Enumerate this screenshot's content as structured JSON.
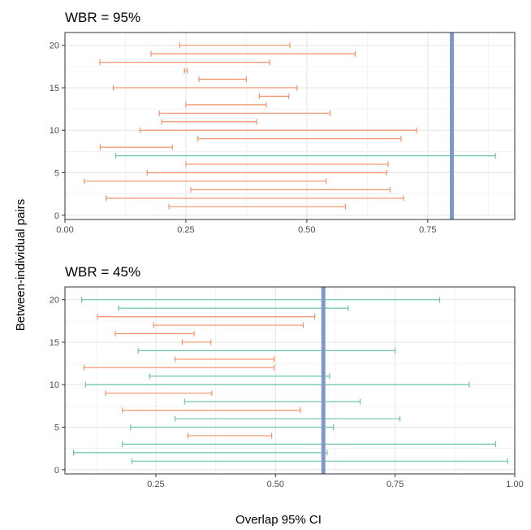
{
  "chart_data": {
    "type": "errorbar",
    "ylabel": "Between-individual pairs",
    "xlabel": "Overlap 95% CI",
    "grid": true,
    "colors": {
      "overlap": "#f4936a",
      "no_overlap": "#6cc5a8",
      "reference": "#8097c9"
    },
    "panels": [
      {
        "title": "WBR = 95%",
        "xlim": [
          0.0,
          0.93
        ],
        "ylim": [
          -0.5,
          21.5
        ],
        "x_ticks": [
          0.0,
          0.25,
          0.5,
          0.75
        ],
        "x_tick_labels": [
          "0.00",
          "0.25",
          "0.50",
          "0.75"
        ],
        "y_ticks": [
          0,
          5,
          10,
          15,
          20
        ],
        "y_tick_labels": [
          "0",
          "5",
          "10",
          "15",
          "20"
        ],
        "reference_x": 0.8,
        "intervals": [
          {
            "y": 1,
            "lo": 0.215,
            "hi": 0.58,
            "group": "overlap"
          },
          {
            "y": 2,
            "lo": 0.085,
            "hi": 0.7,
            "group": "overlap"
          },
          {
            "y": 3,
            "lo": 0.26,
            "hi": 0.672,
            "group": "overlap"
          },
          {
            "y": 4,
            "lo": 0.04,
            "hi": 0.54,
            "group": "overlap"
          },
          {
            "y": 5,
            "lo": 0.17,
            "hi": 0.665,
            "group": "overlap"
          },
          {
            "y": 6,
            "lo": 0.25,
            "hi": 0.668,
            "group": "overlap"
          },
          {
            "y": 7,
            "lo": 0.105,
            "hi": 0.89,
            "group": "no_overlap"
          },
          {
            "y": 8,
            "lo": 0.073,
            "hi": 0.222,
            "group": "overlap"
          },
          {
            "y": 9,
            "lo": 0.275,
            "hi": 0.695,
            "group": "overlap"
          },
          {
            "y": 10,
            "lo": 0.155,
            "hi": 0.727,
            "group": "overlap"
          },
          {
            "y": 11,
            "lo": 0.2,
            "hi": 0.396,
            "group": "overlap"
          },
          {
            "y": 12,
            "lo": 0.195,
            "hi": 0.548,
            "group": "overlap"
          },
          {
            "y": 13,
            "lo": 0.25,
            "hi": 0.416,
            "group": "overlap"
          },
          {
            "y": 14,
            "lo": 0.402,
            "hi": 0.463,
            "group": "overlap"
          },
          {
            "y": 15,
            "lo": 0.1,
            "hi": 0.48,
            "group": "overlap"
          },
          {
            "y": 16,
            "lo": 0.277,
            "hi": 0.375,
            "group": "overlap"
          },
          {
            "y": 17,
            "lo": 0.247,
            "hi": 0.253,
            "group": "overlap"
          },
          {
            "y": 18,
            "lo": 0.072,
            "hi": 0.423,
            "group": "overlap"
          },
          {
            "y": 19,
            "lo": 0.178,
            "hi": 0.6,
            "group": "overlap"
          },
          {
            "y": 20,
            "lo": 0.237,
            "hi": 0.465,
            "group": "overlap"
          }
        ]
      },
      {
        "title": "WBR = 45%",
        "xlim": [
          0.06,
          1.0
        ],
        "ylim": [
          -0.5,
          21.5
        ],
        "x_ticks": [
          0.25,
          0.5,
          0.75,
          1.0
        ],
        "x_tick_labels": [
          "0.25",
          "0.50",
          "0.75",
          "1.00"
        ],
        "y_ticks": [
          0,
          5,
          10,
          15,
          20
        ],
        "y_tick_labels": [
          "0",
          "5",
          "10",
          "15",
          "20"
        ],
        "reference_x": 0.6,
        "intervals": [
          {
            "y": 1,
            "lo": 0.2,
            "hi": 0.985,
            "group": "no_overlap"
          },
          {
            "y": 2,
            "lo": 0.078,
            "hi": 0.608,
            "group": "no_overlap"
          },
          {
            "y": 3,
            "lo": 0.18,
            "hi": 0.96,
            "group": "no_overlap"
          },
          {
            "y": 4,
            "lo": 0.317,
            "hi": 0.492,
            "group": "overlap"
          },
          {
            "y": 5,
            "lo": 0.197,
            "hi": 0.621,
            "group": "no_overlap"
          },
          {
            "y": 6,
            "lo": 0.29,
            "hi": 0.76,
            "group": "no_overlap"
          },
          {
            "y": 7,
            "lo": 0.18,
            "hi": 0.552,
            "group": "overlap"
          },
          {
            "y": 8,
            "lo": 0.31,
            "hi": 0.677,
            "group": "no_overlap"
          },
          {
            "y": 9,
            "lo": 0.145,
            "hi": 0.367,
            "group": "overlap"
          },
          {
            "y": 10,
            "lo": 0.103,
            "hi": 0.905,
            "group": "no_overlap"
          },
          {
            "y": 11,
            "lo": 0.237,
            "hi": 0.613,
            "group": "no_overlap"
          },
          {
            "y": 12,
            "lo": 0.1,
            "hi": 0.497,
            "group": "overlap"
          },
          {
            "y": 13,
            "lo": 0.29,
            "hi": 0.497,
            "group": "overlap"
          },
          {
            "y": 14,
            "lo": 0.213,
            "hi": 0.75,
            "group": "no_overlap"
          },
          {
            "y": 15,
            "lo": 0.305,
            "hi": 0.365,
            "group": "overlap"
          },
          {
            "y": 16,
            "lo": 0.165,
            "hi": 0.33,
            "group": "overlap"
          },
          {
            "y": 17,
            "lo": 0.245,
            "hi": 0.558,
            "group": "overlap"
          },
          {
            "y": 18,
            "lo": 0.128,
            "hi": 0.582,
            "group": "overlap"
          },
          {
            "y": 19,
            "lo": 0.172,
            "hi": 0.652,
            "group": "no_overlap"
          },
          {
            "y": 20,
            "lo": 0.095,
            "hi": 0.843,
            "group": "no_overlap"
          }
        ]
      }
    ]
  }
}
